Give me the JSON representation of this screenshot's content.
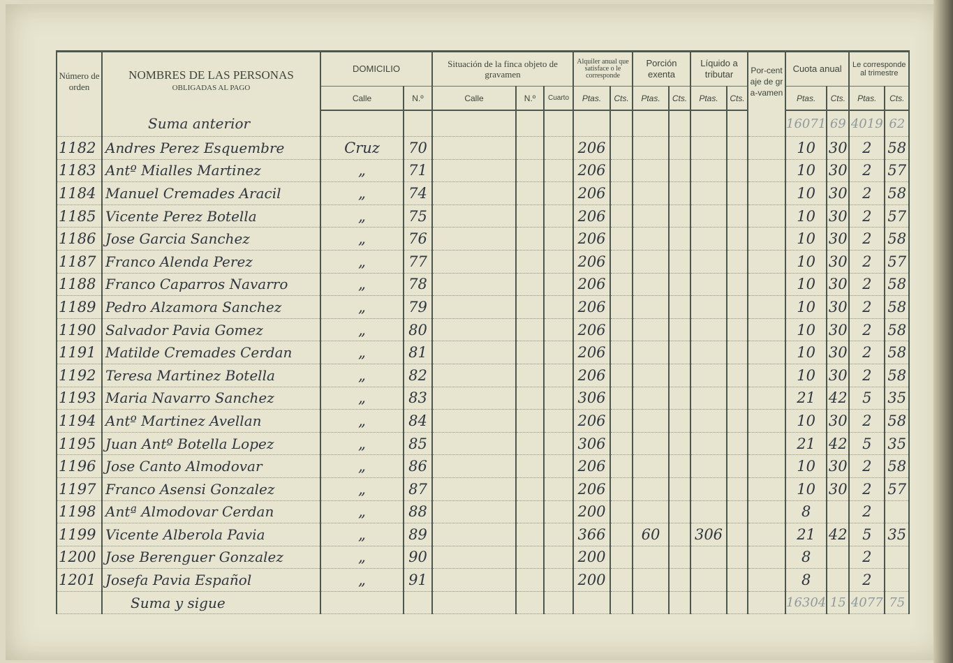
{
  "header": {
    "numero": "Número de orden",
    "nombres": "NOMBRES DE LAS PERSONAS",
    "nombres_sub": "OBLIGADAS AL PAGO",
    "domicilio": "DOMICILIO",
    "calle": "Calle",
    "numero_sym": "N.º",
    "situacion": "Situación de la finca objeto de gravamen",
    "cuarto": "Cuarto",
    "alquiler": "Alquiler anual que satisface o le corresponde",
    "porcion": "Porción exenta",
    "liquido": "Líquido a tributar",
    "porcentaje": "Por-centaje de gra-vamen",
    "cuota": "Cuota anual",
    "trimestre": "Le corresponde al trimestre",
    "ptas": "Ptas.",
    "cts": "Cts."
  },
  "suma_anterior": {
    "label": "Suma anterior",
    "cuota_ptas": "16071",
    "cuota_cts": "69",
    "trim_ptas": "4019",
    "trim_cts": "62"
  },
  "rows": [
    {
      "n": "1182",
      "name": "Andres  Perez  Esquembre",
      "calle": "Cruz",
      "num": "70",
      "alq": "206",
      "por": "",
      "liq": "",
      "cp": "10",
      "cc": "30",
      "tp": "2",
      "tc": "58"
    },
    {
      "n": "1183",
      "name": "Antº  Mialles  Martinez",
      "calle": "„",
      "num": "71",
      "alq": "206",
      "por": "",
      "liq": "",
      "cp": "10",
      "cc": "30",
      "tp": "2",
      "tc": "57"
    },
    {
      "n": "1184",
      "name": "Manuel  Cremades  Aracil",
      "calle": "„",
      "num": "74",
      "alq": "206",
      "por": "",
      "liq": "",
      "cp": "10",
      "cc": "30",
      "tp": "2",
      "tc": "58"
    },
    {
      "n": "1185",
      "name": "Vicente  Perez  Botella",
      "calle": "„",
      "num": "75",
      "alq": "206",
      "por": "",
      "liq": "",
      "cp": "10",
      "cc": "30",
      "tp": "2",
      "tc": "57"
    },
    {
      "n": "1186",
      "name": "Jose  Garcia  Sanchez",
      "calle": "„",
      "num": "76",
      "alq": "206",
      "por": "",
      "liq": "",
      "cp": "10",
      "cc": "30",
      "tp": "2",
      "tc": "58"
    },
    {
      "n": "1187",
      "name": "Franco  Alenda  Perez",
      "calle": "„",
      "num": "77",
      "alq": "206",
      "por": "",
      "liq": "",
      "cp": "10",
      "cc": "30",
      "tp": "2",
      "tc": "57"
    },
    {
      "n": "1188",
      "name": "Franco  Caparros  Navarro",
      "calle": "„",
      "num": "78",
      "alq": "206",
      "por": "",
      "liq": "",
      "cp": "10",
      "cc": "30",
      "tp": "2",
      "tc": "58"
    },
    {
      "n": "1189",
      "name": "Pedro  Alzamora  Sanchez",
      "calle": "„",
      "num": "79",
      "alq": "206",
      "por": "",
      "liq": "",
      "cp": "10",
      "cc": "30",
      "tp": "2",
      "tc": "58"
    },
    {
      "n": "1190",
      "name": "Salvador  Pavia  Gomez",
      "calle": "„",
      "num": "80",
      "alq": "206",
      "por": "",
      "liq": "",
      "cp": "10",
      "cc": "30",
      "tp": "2",
      "tc": "58"
    },
    {
      "n": "1191",
      "name": "Matilde  Cremades  Cerdan",
      "calle": "„",
      "num": "81",
      "alq": "206",
      "por": "",
      "liq": "",
      "cp": "10",
      "cc": "30",
      "tp": "2",
      "tc": "58"
    },
    {
      "n": "1192",
      "name": "Teresa  Martinez  Botella",
      "calle": "„",
      "num": "82",
      "alq": "206",
      "por": "",
      "liq": "",
      "cp": "10",
      "cc": "30",
      "tp": "2",
      "tc": "58"
    },
    {
      "n": "1193",
      "name": "Maria  Navarro  Sanchez",
      "calle": "„",
      "num": "83",
      "alq": "306",
      "por": "",
      "liq": "",
      "cp": "21",
      "cc": "42",
      "tp": "5",
      "tc": "35"
    },
    {
      "n": "1194",
      "name": "Antº  Martinez  Avellan",
      "calle": "„",
      "num": "84",
      "alq": "206",
      "por": "",
      "liq": "",
      "cp": "10",
      "cc": "30",
      "tp": "2",
      "tc": "58"
    },
    {
      "n": "1195",
      "name": "Juan Antº Botella  Lopez",
      "calle": "„",
      "num": "85",
      "alq": "306",
      "por": "",
      "liq": "",
      "cp": "21",
      "cc": "42",
      "tp": "5",
      "tc": "35"
    },
    {
      "n": "1196",
      "name": "Jose  Canto  Almodovar",
      "calle": "„",
      "num": "86",
      "alq": "206",
      "por": "",
      "liq": "",
      "cp": "10",
      "cc": "30",
      "tp": "2",
      "tc": "58"
    },
    {
      "n": "1197",
      "name": "Franco  Asensi  Gonzalez",
      "calle": "„",
      "num": "87",
      "alq": "206",
      "por": "",
      "liq": "",
      "cp": "10",
      "cc": "30",
      "tp": "2",
      "tc": "57"
    },
    {
      "n": "1198",
      "name": "Antª  Almodovar Cerdan",
      "calle": "„",
      "num": "88",
      "alq": "200",
      "por": "",
      "liq": "",
      "cp": "8",
      "cc": "",
      "tp": "2",
      "tc": ""
    },
    {
      "n": "1199",
      "name": "Vicente  Alberola  Pavia",
      "calle": "„",
      "num": "89",
      "alq": "366",
      "por": "60",
      "liq": "306",
      "cp": "21",
      "cc": "42",
      "tp": "5",
      "tc": "35"
    },
    {
      "n": "1200",
      "name": "Jose  Berenguer Gonzalez",
      "calle": "„",
      "num": "90",
      "alq": "200",
      "por": "",
      "liq": "",
      "cp": "8",
      "cc": "",
      "tp": "2",
      "tc": ""
    },
    {
      "n": "1201",
      "name": "Josefa  Pavia  Español",
      "calle": "„",
      "num": "91",
      "alq": "200",
      "por": "",
      "liq": "",
      "cp": "8",
      "cc": "",
      "tp": "2",
      "tc": ""
    }
  ],
  "suma_sigue": {
    "label": "Suma y sigue",
    "cuota_ptas": "16304",
    "cuota_cts": "15",
    "trim_ptas": "4077",
    "trim_cts": "75"
  }
}
